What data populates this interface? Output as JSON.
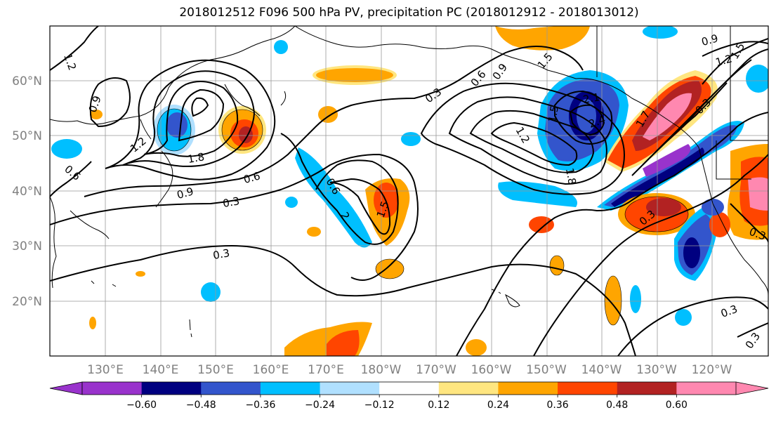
{
  "title": "2018012512 F096 500 hPa PV, precipitation PC (2018012912 - 2018013012)",
  "lat_labels": [
    "60°N",
    "50°N",
    "40°N",
    "30°N",
    "20°N"
  ],
  "lon_labels": [
    "130°E",
    "140°E",
    "150°E",
    "160°E",
    "170°E",
    "180°W",
    "170°W",
    "160°W",
    "150°W",
    "140°W",
    "130°W",
    "120°W"
  ],
  "colorbar": {
    "colors": [
      "#9933cc",
      "#000080",
      "#3355cc",
      "#00bfff",
      "#b0e0ff",
      "#ffffff",
      "#ffe680",
      "#ffa500",
      "#ff4500",
      "#b22222",
      "#ff88b0"
    ],
    "tick_labels": [
      "−0.60",
      "−0.48",
      "−0.36",
      "−0.24",
      "−0.12",
      "0.12",
      "0.24",
      "0.36",
      "0.48",
      "0.60"
    ]
  },
  "contour_labels": [
    "1.2",
    "0.9",
    "1.2",
    "0.6",
    "1.8",
    "0.9",
    "0.6",
    "0.3",
    "0.3",
    "0.6",
    "2",
    "1.5",
    "0.3",
    "0.6",
    "0.9",
    "1.5",
    "1.2",
    "1.8",
    "1.5",
    "2.1",
    "2.4",
    "1.7",
    "0.3",
    "0.3",
    "0.3",
    "0.3",
    "0.3",
    "0.9",
    "1.2",
    "1.5"
  ]
}
